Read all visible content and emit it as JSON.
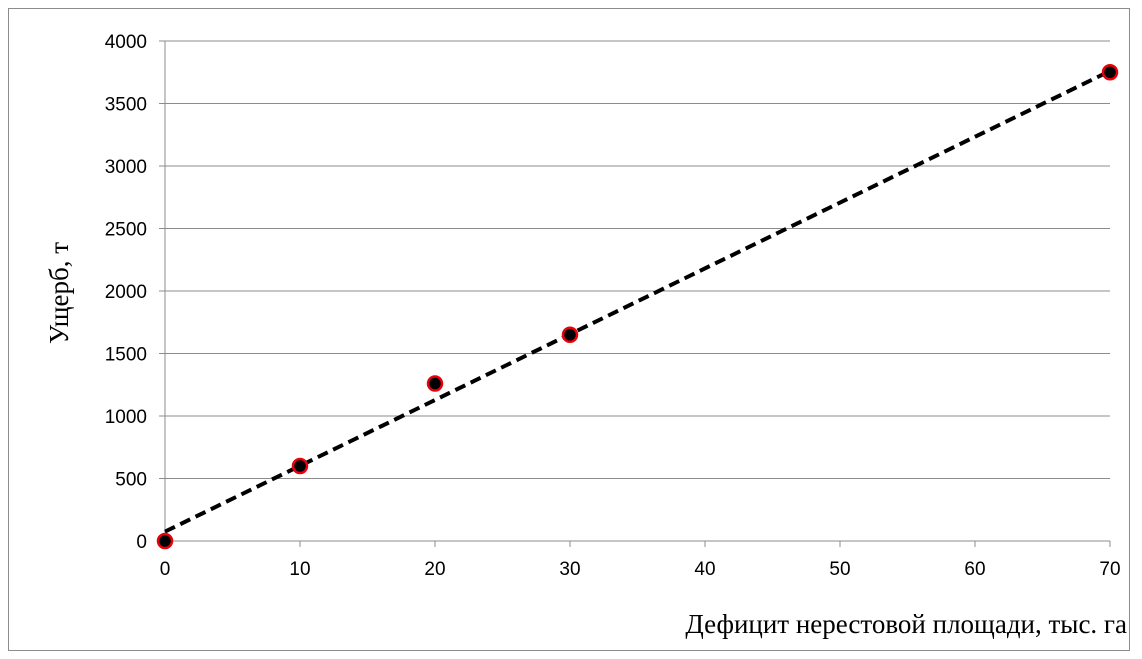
{
  "chart_data": {
    "type": "scatter",
    "xlabel": "Дефицит нерестовой площади, тыс. га",
    "ylabel": "Ущерб, т",
    "xlim": [
      0,
      70
    ],
    "ylim": [
      0,
      4000
    ],
    "x_ticks": [
      "0",
      "10",
      "20",
      "30",
      "40",
      "50",
      "60",
      "70"
    ],
    "y_ticks": [
      "0",
      "500",
      "1000",
      "1500",
      "2000",
      "2500",
      "3000",
      "3500",
      "4000"
    ],
    "grid": "horizontal",
    "legend": "none",
    "series": [
      {
        "points": [
          {
            "x": 0,
            "y": 0
          },
          {
            "x": 10,
            "y": 600
          },
          {
            "x": 20,
            "y": 1260
          },
          {
            "x": 30,
            "y": 1650
          },
          {
            "x": 70,
            "y": 3750
          }
        ],
        "marker_fill": "#000000",
        "marker_edge": "#e8000b"
      }
    ],
    "trendline": {
      "type": "linear",
      "style": "dashed",
      "color": "#000000",
      "from": {
        "x": 0,
        "y": 75
      },
      "to": {
        "x": 70,
        "y": 3760
      }
    }
  }
}
